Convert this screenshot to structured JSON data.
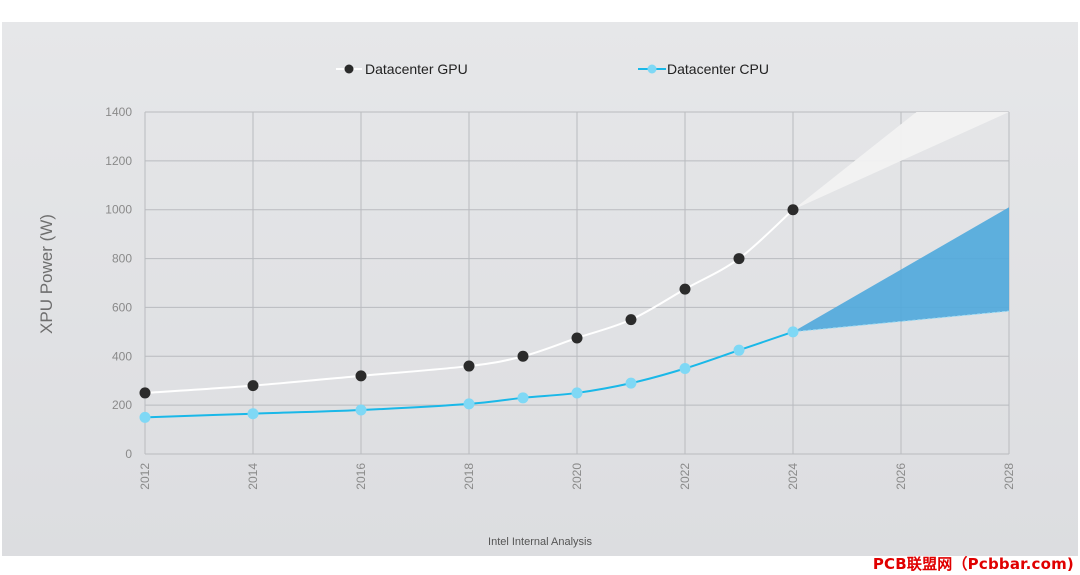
{
  "chart_data": {
    "type": "line",
    "title": "",
    "xlabel": "",
    "ylabel": "XPU Power (W)",
    "xlim": [
      2012,
      2028
    ],
    "ylim": [
      0,
      1400
    ],
    "x_ticks": [
      "2012",
      "2014",
      "2016",
      "2018",
      "2020",
      "2022",
      "2024",
      "2026",
      "2028"
    ],
    "y_ticks": [
      "0",
      "200",
      "400",
      "600",
      "800",
      "1000",
      "1200",
      "1400"
    ],
    "grid": true,
    "legend_position": "top",
    "series": [
      {
        "name": "Datacenter GPU",
        "color": "#2b2b2b",
        "line_color": "#ffffff",
        "x": [
          2012,
          2014,
          2016,
          2018,
          2019,
          2020,
          2021,
          2022,
          2023,
          2024
        ],
        "values": [
          250,
          280,
          320,
          360,
          400,
          475,
          550,
          675,
          800,
          1000
        ]
      },
      {
        "name": "Datacenter CPU",
        "color": "#7fd8f5",
        "line_color": "#1ab8e8",
        "x": [
          2012,
          2014,
          2016,
          2018,
          2019,
          2020,
          2021,
          2022,
          2023,
          2024
        ],
        "values": [
          150,
          165,
          180,
          205,
          230,
          250,
          290,
          350,
          425,
          500
        ]
      }
    ],
    "projections": [
      {
        "series": "Datacenter GPU",
        "color": "#f2f2f2",
        "x_start": 2024,
        "y_start": 1000,
        "x_end": 2028,
        "upper_end": 1700,
        "lower_end": 1400
      },
      {
        "series": "Datacenter CPU",
        "color": "#4fa8dc",
        "x_start": 2024,
        "y_start": 500,
        "x_end": 2028,
        "upper_end": 1010,
        "lower_end": 585
      }
    ],
    "annotation": "Intel Internal Analysis"
  },
  "watermark": "PCB联盟网（Pcbbar.com)"
}
